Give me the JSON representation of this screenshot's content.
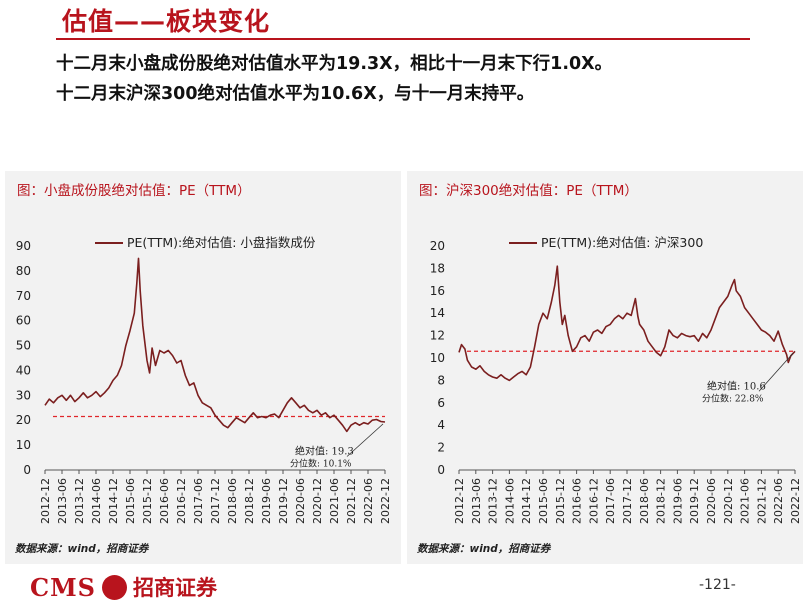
{
  "header": {
    "title": "估值——板块变化",
    "summary_line_1": "十二月末小盘成份股绝对估值水平为19.3X，相比十一月末下行1.0X。",
    "summary_line_2": "十二月末沪深300绝对估值水平为10.6X，与十一月末持平。"
  },
  "footer": {
    "logo_text": "CMS",
    "company": "招商证券",
    "page": "-121-"
  },
  "colors": {
    "accent": "#b8141d",
    "series": "#7b1f1f",
    "reference": "#e0262b",
    "panel_bg": "#f2f2f2"
  },
  "chart_data": [
    {
      "type": "line",
      "title": "图：小盘成份股绝对估值：PE（TTM）",
      "legend": "PE(TTM):绝对估值: 小盘指数成份",
      "source": "数据来源：wind，招商证券",
      "x_tick_labels": [
        "2012-12",
        "2013-06",
        "2013-12",
        "2014-06",
        "2014-12",
        "2015-06",
        "2015-12",
        "2016-06",
        "2016-12",
        "2017-06",
        "2017-12",
        "2018-06",
        "2018-12",
        "2019-06",
        "2019-12",
        "2020-06",
        "2020-12",
        "2021-06",
        "2021-12",
        "2022-06",
        "2022-12"
      ],
      "y_ticks": [
        0,
        10,
        20,
        30,
        40,
        50,
        60,
        70,
        80,
        90
      ],
      "ylim": [
        0,
        90
      ],
      "reference_line": 21.5,
      "annotation": {
        "line1": "绝对值: 19.3",
        "line2": "分位数: 10.1%"
      },
      "series": [
        {
          "values": [
            [
              0,
              26
            ],
            [
              0.5,
              28.5
            ],
            [
              1,
              27
            ],
            [
              1.5,
              29
            ],
            [
              2,
              30
            ],
            [
              2.5,
              28
            ],
            [
              3,
              30
            ],
            [
              3.5,
              27.5
            ],
            [
              4,
              29
            ],
            [
              4.5,
              31
            ],
            [
              5,
              29
            ],
            [
              5.5,
              30
            ],
            [
              6,
              31.5
            ],
            [
              6.5,
              29.5
            ],
            [
              7,
              31
            ],
            [
              7.5,
              33
            ],
            [
              8,
              36
            ],
            [
              8.5,
              38
            ],
            [
              9,
              42
            ],
            [
              9.5,
              50
            ],
            [
              10,
              56
            ],
            [
              10.5,
              63
            ],
            [
              10.8,
              75
            ],
            [
              11,
              85
            ],
            [
              11.2,
              72
            ],
            [
              11.5,
              58
            ],
            [
              12,
              44
            ],
            [
              12.3,
              39
            ],
            [
              12.6,
              49
            ],
            [
              13,
              42
            ],
            [
              13.5,
              48
            ],
            [
              14,
              47
            ],
            [
              14.5,
              48
            ],
            [
              15,
              46
            ],
            [
              15.5,
              43
            ],
            [
              16,
              44
            ],
            [
              16.5,
              38
            ],
            [
              17,
              34
            ],
            [
              17.5,
              35
            ],
            [
              18,
              30
            ],
            [
              18.5,
              27
            ],
            [
              19,
              26
            ],
            [
              19.5,
              25
            ],
            [
              20,
              22
            ],
            [
              20.5,
              20
            ],
            [
              21,
              18
            ],
            [
              21.5,
              17
            ],
            [
              22,
              19
            ],
            [
              22.5,
              21
            ],
            [
              23,
              20
            ],
            [
              23.5,
              19
            ],
            [
              24,
              21
            ],
            [
              24.5,
              23
            ],
            [
              25,
              21
            ],
            [
              25.5,
              21.5
            ],
            [
              26,
              21
            ],
            [
              26.5,
              22
            ],
            [
              27,
              22.5
            ],
            [
              27.5,
              21
            ],
            [
              28,
              24
            ],
            [
              28.5,
              27
            ],
            [
              29,
              29
            ],
            [
              29.5,
              27
            ],
            [
              30,
              25
            ],
            [
              30.5,
              26
            ],
            [
              31,
              24
            ],
            [
              31.5,
              23
            ],
            [
              32,
              24
            ],
            [
              32.5,
              22
            ],
            [
              33,
              23
            ],
            [
              33.5,
              21
            ],
            [
              34,
              22
            ],
            [
              34.5,
              20
            ],
            [
              35,
              18
            ],
            [
              35.5,
              15.5
            ],
            [
              36,
              18
            ],
            [
              36.5,
              19
            ],
            [
              37,
              18
            ],
            [
              37.5,
              19
            ],
            [
              38,
              18.5
            ],
            [
              38.5,
              20
            ],
            [
              39,
              20.3
            ],
            [
              39.5,
              19.5
            ],
            [
              40,
              19.3
            ]
          ]
        }
      ]
    },
    {
      "type": "line",
      "title": "图：沪深300绝对估值：PE（TTM）",
      "legend": "PE(TTM):绝对估值: 沪深300",
      "source": "数据来源：wind，招商证券",
      "x_tick_labels": [
        "2012-12",
        "2013-06",
        "2013-12",
        "2014-06",
        "2014-12",
        "2015-06",
        "2015-12",
        "2016-06",
        "2016-12",
        "2017-06",
        "2017-12",
        "2018-06",
        "2018-12",
        "2019-06",
        "2019-12",
        "2020-06",
        "2020-12",
        "2021-06",
        "2021-12",
        "2022-06",
        "2022-12"
      ],
      "y_ticks": [
        0,
        2,
        4,
        6,
        8,
        10,
        12,
        14,
        16,
        18,
        20
      ],
      "ylim": [
        0,
        20
      ],
      "reference_line": 10.6,
      "annotation": {
        "line1": "绝对值: 10.6",
        "line2": "分位数: 22.8%"
      },
      "series": [
        {
          "values": [
            [
              0,
              10.5
            ],
            [
              0.3,
              11.2
            ],
            [
              0.7,
              10.8
            ],
            [
              1,
              9.8
            ],
            [
              1.5,
              9.2
            ],
            [
              2,
              9
            ],
            [
              2.5,
              9.3
            ],
            [
              3,
              8.8
            ],
            [
              3.5,
              8.5
            ],
            [
              4,
              8.3
            ],
            [
              4.5,
              8.2
            ],
            [
              5,
              8.5
            ],
            [
              5.5,
              8.2
            ],
            [
              6,
              8
            ],
            [
              6.5,
              8.3
            ],
            [
              7,
              8.6
            ],
            [
              7.5,
              8.8
            ],
            [
              8,
              8.5
            ],
            [
              8.5,
              9.2
            ],
            [
              9,
              11
            ],
            [
              9.5,
              13
            ],
            [
              10,
              14
            ],
            [
              10.5,
              13.5
            ],
            [
              11,
              15
            ],
            [
              11.4,
              16.5
            ],
            [
              11.7,
              18.2
            ],
            [
              12,
              15
            ],
            [
              12.3,
              13
            ],
            [
              12.6,
              13.8
            ],
            [
              13,
              12
            ],
            [
              13.5,
              10.6
            ],
            [
              14,
              11
            ],
            [
              14.5,
              11.8
            ],
            [
              15,
              12
            ],
            [
              15.5,
              11.5
            ],
            [
              16,
              12.3
            ],
            [
              16.5,
              12.5
            ],
            [
              17,
              12.2
            ],
            [
              17.5,
              12.8
            ],
            [
              18,
              13
            ],
            [
              18.5,
              13.5
            ],
            [
              19,
              13.8
            ],
            [
              19.5,
              13.5
            ],
            [
              20,
              14
            ],
            [
              20.5,
              13.8
            ],
            [
              21,
              15.3
            ],
            [
              21.3,
              13.7
            ],
            [
              21.5,
              13
            ],
            [
              22,
              12.5
            ],
            [
              22.5,
              11.5
            ],
            [
              23,
              11
            ],
            [
              23.5,
              10.5
            ],
            [
              24,
              10.2
            ],
            [
              24.5,
              11
            ],
            [
              25,
              12.5
            ],
            [
              25.5,
              12
            ],
            [
              26,
              11.8
            ],
            [
              26.5,
              12.2
            ],
            [
              27,
              12
            ],
            [
              27.5,
              11.9
            ],
            [
              28,
              12
            ],
            [
              28.5,
              11.5
            ],
            [
              29,
              12.2
            ],
            [
              29.5,
              11.8
            ],
            [
              30,
              12.5
            ],
            [
              30.5,
              13.5
            ],
            [
              31,
              14.5
            ],
            [
              31.5,
              15
            ],
            [
              32,
              15.5
            ],
            [
              32.5,
              16.5
            ],
            [
              32.8,
              17
            ],
            [
              33,
              16
            ],
            [
              33.5,
              15.5
            ],
            [
              34,
              14.5
            ],
            [
              34.5,
              14
            ],
            [
              35,
              13.5
            ],
            [
              35.5,
              13
            ],
            [
              36,
              12.5
            ],
            [
              36.5,
              12.3
            ],
            [
              37,
              12
            ],
            [
              37.5,
              11.5
            ],
            [
              38,
              12.4
            ],
            [
              38.5,
              11.2
            ],
            [
              39,
              10.3
            ],
            [
              39.2,
              9.6
            ],
            [
              39.5,
              10.2
            ],
            [
              40,
              10.6
            ]
          ]
        }
      ]
    }
  ]
}
